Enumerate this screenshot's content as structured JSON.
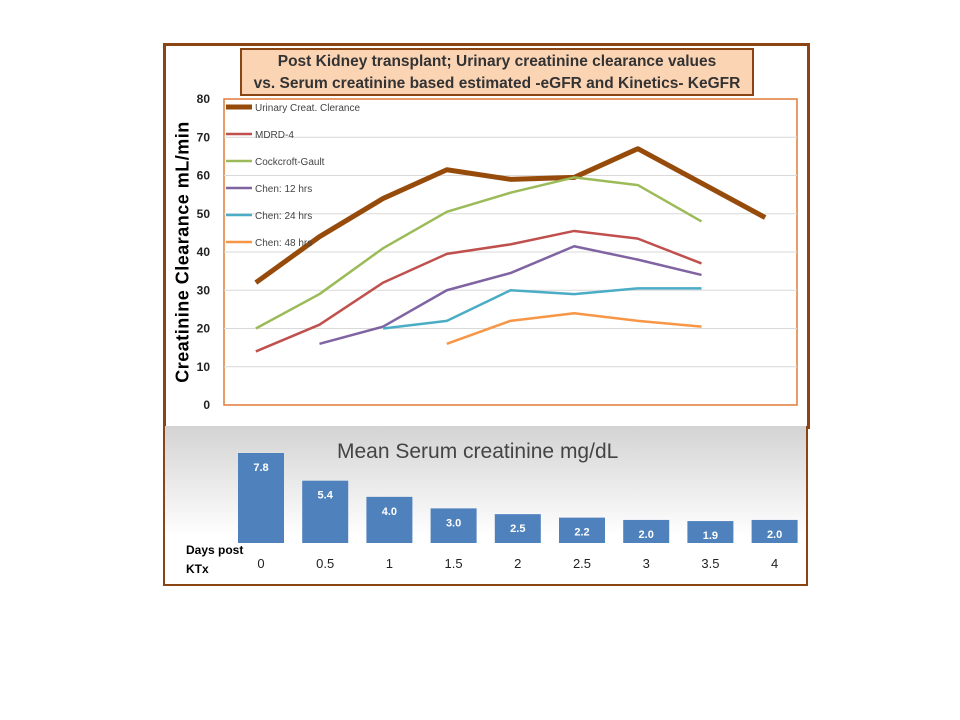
{
  "title": {
    "line1": "Post Kidney transplant; Urinary creatinine clearance values",
    "line2": "vs. Serum creatinine based estimated -eGFR  and Kinetics- KeGFR"
  },
  "chart_data": [
    {
      "type": "line",
      "ylabel": "Creatinine Clearance  mL/min",
      "ylim": [
        0,
        80
      ],
      "yticks": [
        0,
        10,
        20,
        30,
        40,
        50,
        60,
        70,
        80
      ],
      "x": [
        0,
        0.5,
        1,
        1.5,
        2,
        2.5,
        3,
        3.5,
        4
      ],
      "series": [
        {
          "name": "Urinary Creat. Clerance",
          "color": "#964B0A",
          "width": 5,
          "values": [
            32,
            44,
            54,
            61.5,
            59,
            59.5,
            67,
            null,
            49
          ]
        },
        {
          "name": "MDRD-4",
          "color": "#C0504D",
          "width": 2.5,
          "values": [
            14,
            21,
            32,
            39.5,
            42,
            45.5,
            43.5,
            37,
            null
          ]
        },
        {
          "name": "Cockcroft-Gault",
          "color": "#9BBB59",
          "width": 2.5,
          "values": [
            20,
            29,
            41,
            50.5,
            55.5,
            59.5,
            57.5,
            48,
            null
          ]
        },
        {
          "name": "Chen: 12 hrs",
          "color": "#8064A2",
          "width": 2.5,
          "values": [
            null,
            16,
            20.5,
            30,
            34.5,
            41.5,
            38,
            34,
            null
          ]
        },
        {
          "name": "Chen: 24 hrs",
          "color": "#4BACC6",
          "width": 2.5,
          "values": [
            null,
            null,
            20,
            22,
            30,
            29,
            30.5,
            30.5,
            null
          ]
        },
        {
          "name": "Chen: 48 hrs",
          "color": "#F79646",
          "width": 2.5,
          "values": [
            null,
            null,
            null,
            16,
            22,
            24,
            22,
            20.5,
            null
          ]
        }
      ]
    },
    {
      "type": "bar",
      "title": "Mean Serum creatinine mg/dL",
      "categories": [
        "0",
        "0.5",
        "1",
        "1.5",
        "2",
        "2.5",
        "3",
        "3.5",
        "4"
      ],
      "values": [
        7.8,
        5.4,
        4.0,
        3.0,
        2.5,
        2.2,
        2.0,
        1.9,
        2.0
      ],
      "value_labels": [
        "7.8",
        "5.4",
        "4.0",
        "3.0",
        "2.5",
        "2.2",
        "2.0",
        "1.9",
        "2.0"
      ],
      "xlabel_line1": "Days post",
      "xlabel_line2": "KTx",
      "color": "#4F81BD"
    }
  ]
}
